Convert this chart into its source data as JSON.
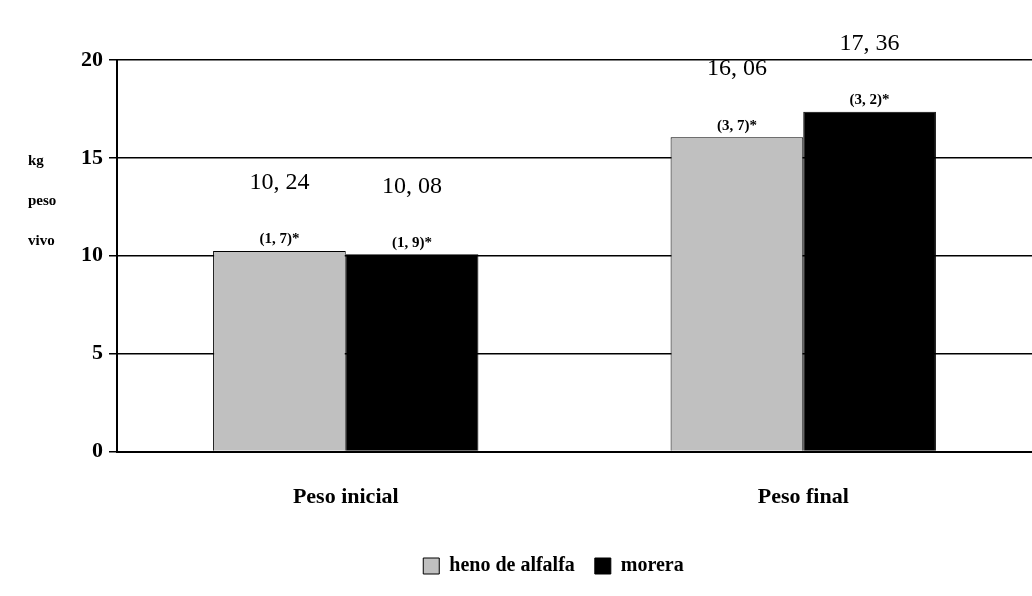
{
  "chart_data": {
    "type": "bar",
    "ylabel": "kg peso vivo",
    "categories": [
      "Peso inicial",
      "Peso final"
    ],
    "series": [
      {
        "name": "heno de alfalfa",
        "color": "#c0c0c0",
        "values": [
          10.24,
          16.06
        ],
        "value_labels": [
          "10, 24",
          "16, 06"
        ]
      },
      {
        "name": "morera",
        "color": "#000000",
        "values": [
          10.08,
          17.36
        ],
        "value_labels": [
          "10, 08",
          "17, 36"
        ]
      }
    ],
    "annotations": [
      "(1, 7)*",
      "(1, 9)*",
      "(3, 7)*",
      "(3, 2)*"
    ],
    "ylim": [
      0,
      20
    ],
    "yticks": [
      0,
      5,
      10,
      15,
      20
    ],
    "grid": "y",
    "legend": "bottom"
  }
}
